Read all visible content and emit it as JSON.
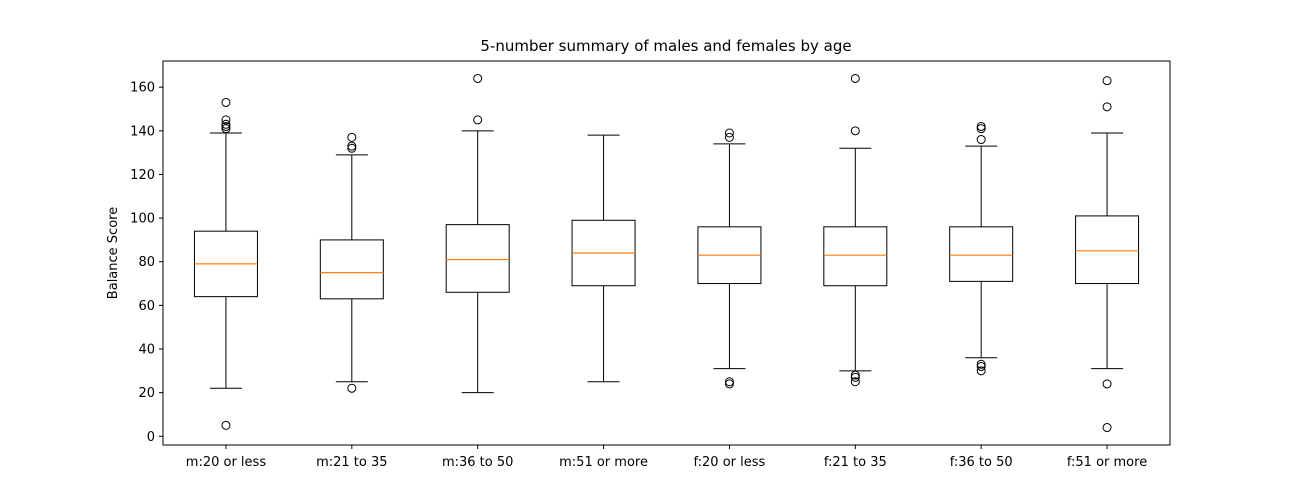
{
  "chart_data": {
    "type": "box",
    "title": "5-number summary of males and females by age",
    "xlabel": "",
    "ylabel": "Balance Score",
    "ylim": [
      -4,
      172
    ],
    "yticks": [
      0,
      20,
      40,
      60,
      80,
      100,
      120,
      140,
      160
    ],
    "grid": false,
    "colors": {
      "box": "#000000",
      "median": "#ff7f0e",
      "outlier": "#000000"
    },
    "categories": [
      "m:20 or less",
      "m:21 to 35",
      "m:36 to 50",
      "m:51 or more",
      "f:20 or less",
      "f:21 to 35",
      "f:36 to 50",
      "f:51 or more"
    ],
    "boxes": [
      {
        "category": "m:20 or less",
        "whisker_low": 22,
        "q1": 64,
        "median": 79,
        "q3": 94,
        "whisker_high": 139,
        "outliers": [
          5,
          141,
          142,
          143,
          145,
          153
        ]
      },
      {
        "category": "m:21 to 35",
        "whisker_low": 25,
        "q1": 63,
        "median": 75,
        "q3": 90,
        "whisker_high": 129,
        "outliers": [
          22,
          132,
          133,
          137
        ]
      },
      {
        "category": "m:36 to 50",
        "whisker_low": 20,
        "q1": 66,
        "median": 81,
        "q3": 97,
        "whisker_high": 140,
        "outliers": [
          145,
          164
        ]
      },
      {
        "category": "m:51 or more",
        "whisker_low": 25,
        "q1": 69,
        "median": 84,
        "q3": 99,
        "whisker_high": 138,
        "outliers": []
      },
      {
        "category": "f:20 or less",
        "whisker_low": 31,
        "q1": 70,
        "median": 83,
        "q3": 96,
        "whisker_high": 134,
        "outliers": [
          24,
          25,
          137,
          139
        ]
      },
      {
        "category": "f:21 to 35",
        "whisker_low": 30,
        "q1": 69,
        "median": 83,
        "q3": 96,
        "whisker_high": 132,
        "outliers": [
          25,
          27,
          28,
          140,
          164
        ]
      },
      {
        "category": "f:36 to 50",
        "whisker_low": 36,
        "q1": 71,
        "median": 83,
        "q3": 96,
        "whisker_high": 133,
        "outliers": [
          30,
          32,
          33,
          136,
          141,
          142
        ]
      },
      {
        "category": "f:51 or more",
        "whisker_low": 31,
        "q1": 70,
        "median": 85,
        "q3": 101,
        "whisker_high": 139,
        "outliers": [
          4,
          24,
          151,
          163
        ]
      }
    ]
  }
}
